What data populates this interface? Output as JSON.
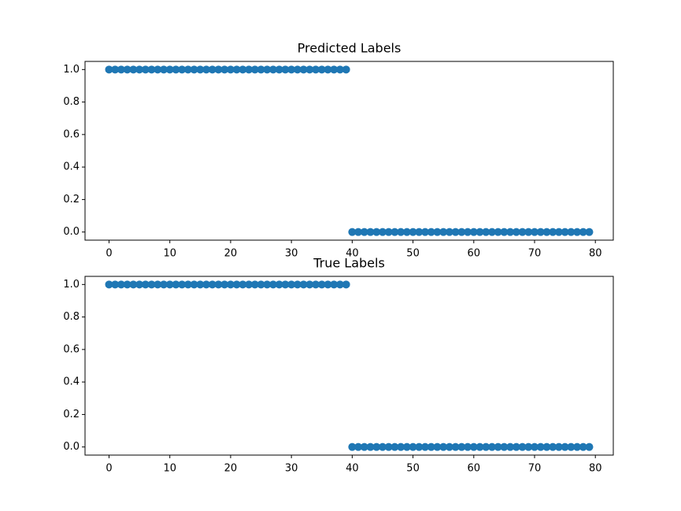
{
  "chart_data": [
    {
      "type": "scatter",
      "title": "Predicted Labels",
      "color": "#1f77b4",
      "x": [
        0,
        1,
        2,
        3,
        4,
        5,
        6,
        7,
        8,
        9,
        10,
        11,
        12,
        13,
        14,
        15,
        16,
        17,
        18,
        19,
        20,
        21,
        22,
        23,
        24,
        25,
        26,
        27,
        28,
        29,
        30,
        31,
        32,
        33,
        34,
        35,
        36,
        37,
        38,
        39,
        40,
        41,
        42,
        43,
        44,
        45,
        46,
        47,
        48,
        49,
        50,
        51,
        52,
        53,
        54,
        55,
        56,
        57,
        58,
        59,
        60,
        61,
        62,
        63,
        64,
        65,
        66,
        67,
        68,
        69,
        70,
        71,
        72,
        73,
        74,
        75,
        76,
        77,
        78,
        79
      ],
      "values": [
        1,
        1,
        1,
        1,
        1,
        1,
        1,
        1,
        1,
        1,
        1,
        1,
        1,
        1,
        1,
        1,
        1,
        1,
        1,
        1,
        1,
        1,
        1,
        1,
        1,
        1,
        1,
        1,
        1,
        1,
        1,
        1,
        1,
        1,
        1,
        1,
        1,
        1,
        1,
        1,
        0,
        0,
        0,
        0,
        0,
        0,
        0,
        0,
        0,
        0,
        0,
        0,
        0,
        0,
        0,
        0,
        0,
        0,
        0,
        0,
        0,
        0,
        0,
        0,
        0,
        0,
        0,
        0,
        0,
        0,
        0,
        0,
        0,
        0,
        0,
        0,
        0,
        0,
        0,
        0
      ],
      "xlim": [
        -3.95,
        82.95
      ],
      "ylim": [
        -0.05,
        1.05
      ],
      "xticks": [
        0,
        10,
        20,
        30,
        40,
        50,
        60,
        70,
        80
      ],
      "yticks": [
        {
          "value": 0,
          "label": "0.0"
        },
        {
          "value": 0.2,
          "label": "0.2"
        },
        {
          "value": 0.4,
          "label": "0.4"
        },
        {
          "value": 0.6,
          "label": "0.6"
        },
        {
          "value": 0.8,
          "label": "0.8"
        },
        {
          "value": 1,
          "label": "1.0"
        }
      ]
    },
    {
      "type": "scatter",
      "title": "True Labels",
      "color": "#1f77b4",
      "x": [
        0,
        1,
        2,
        3,
        4,
        5,
        6,
        7,
        8,
        9,
        10,
        11,
        12,
        13,
        14,
        15,
        16,
        17,
        18,
        19,
        20,
        21,
        22,
        23,
        24,
        25,
        26,
        27,
        28,
        29,
        30,
        31,
        32,
        33,
        34,
        35,
        36,
        37,
        38,
        39,
        40,
        41,
        42,
        43,
        44,
        45,
        46,
        47,
        48,
        49,
        50,
        51,
        52,
        53,
        54,
        55,
        56,
        57,
        58,
        59,
        60,
        61,
        62,
        63,
        64,
        65,
        66,
        67,
        68,
        69,
        70,
        71,
        72,
        73,
        74,
        75,
        76,
        77,
        78,
        79
      ],
      "values": [
        1,
        1,
        1,
        1,
        1,
        1,
        1,
        1,
        1,
        1,
        1,
        1,
        1,
        1,
        1,
        1,
        1,
        1,
        1,
        1,
        1,
        1,
        1,
        1,
        1,
        1,
        1,
        1,
        1,
        1,
        1,
        1,
        1,
        1,
        1,
        1,
        1,
        1,
        1,
        1,
        0,
        0,
        0,
        0,
        0,
        0,
        0,
        0,
        0,
        0,
        0,
        0,
        0,
        0,
        0,
        0,
        0,
        0,
        0,
        0,
        0,
        0,
        0,
        0,
        0,
        0,
        0,
        0,
        0,
        0,
        0,
        0,
        0,
        0,
        0,
        0,
        0,
        0,
        0,
        0
      ],
      "xlim": [
        -3.95,
        82.95
      ],
      "ylim": [
        -0.05,
        1.05
      ],
      "xticks": [
        0,
        10,
        20,
        30,
        40,
        50,
        60,
        70,
        80
      ],
      "yticks": [
        {
          "value": 0,
          "label": "0.0"
        },
        {
          "value": 0.2,
          "label": "0.2"
        },
        {
          "value": 0.4,
          "label": "0.4"
        },
        {
          "value": 0.6,
          "label": "0.6"
        },
        {
          "value": 0.8,
          "label": "0.8"
        },
        {
          "value": 1,
          "label": "1.0"
        }
      ]
    }
  ]
}
